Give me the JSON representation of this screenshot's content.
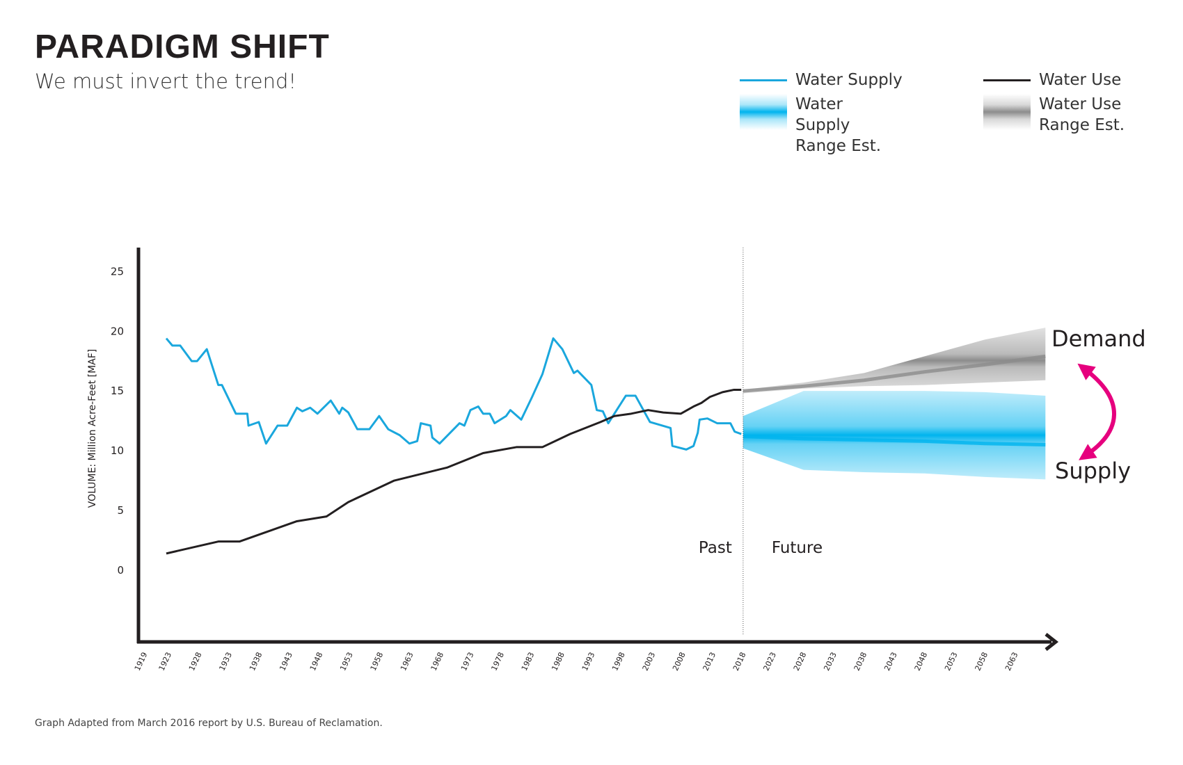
{
  "chart_data": {
    "type": "line",
    "title": "PARADIGM SHIFT",
    "subtitle": "We must invert the trend!",
    "y_label": "VOLUME: Million Acre-Feet [MAF]",
    "source": "Graph Adapted from March 2016 report by U.S. Bureau of Reclamation.",
    "annotations": {
      "demand": "Demand",
      "supply": "Supply",
      "past": "Past",
      "future": "Future"
    },
    "divider_x": 2018,
    "xlim": [
      1918,
      2069
    ],
    "xticks": [
      1919,
      1923,
      1928,
      1933,
      1938,
      1943,
      1948,
      1953,
      1958,
      1963,
      1968,
      1973,
      1978,
      1983,
      1988,
      1993,
      1998,
      2003,
      2008,
      2013,
      2018,
      2023,
      2028,
      2033,
      2038,
      2043,
      2048,
      2053,
      2058,
      2063
    ],
    "ylim": [
      -6,
      27
    ],
    "yticks": [
      0,
      5,
      10,
      15,
      20,
      25
    ],
    "series": [
      {
        "name": "Water Supply",
        "color": "#1aa7dd",
        "x": [
          1922.6,
          1923.6,
          1924.9,
          1926.8,
          1927.7,
          1929.3,
          1931.2,
          1931.8,
          1934.1,
          1936.0,
          1936.2,
          1937.9,
          1939.1,
          1941.0,
          1942.6,
          1944.2,
          1945.1,
          1946.4,
          1947.6,
          1949.8,
          1951.2,
          1951.7,
          1952.7,
          1954.2,
          1956.2,
          1957.8,
          1959.3,
          1961.2,
          1962.8,
          1964.1,
          1964.7,
          1966.3,
          1966.6,
          1967.8,
          1971.1,
          1971.9,
          1972.9,
          1974.2,
          1975.0,
          1976.1,
          1976.9,
          1978.8,
          1979.5,
          1981.3,
          1983.1,
          1984.8,
          1986.6,
          1988.1,
          1990.0,
          1990.6,
          1992.9,
          1993.8,
          1994.8,
          1995.7,
          1998.6,
          2000.2,
          2002.6,
          2006.0,
          2006.3,
          2008.6,
          2009.8,
          2010.5,
          2010.8,
          2012.1,
          2013.7,
          2015.9,
          2016.6,
          2017.7
        ],
        "values": [
          19.4,
          18.8,
          18.8,
          17.5,
          17.5,
          18.5,
          15.5,
          15.5,
          13.1,
          13.1,
          12.1,
          12.4,
          10.6,
          12.1,
          12.1,
          13.6,
          13.3,
          13.6,
          13.1,
          14.2,
          13.1,
          13.6,
          13.2,
          11.8,
          11.8,
          12.9,
          11.8,
          11.3,
          10.6,
          10.8,
          12.3,
          12.1,
          11.1,
          10.6,
          12.3,
          12.1,
          13.4,
          13.7,
          13.1,
          13.1,
          12.3,
          12.9,
          13.4,
          12.6,
          14.5,
          16.4,
          19.4,
          18.5,
          16.5,
          16.7,
          15.5,
          13.4,
          13.3,
          12.3,
          14.6,
          14.6,
          12.4,
          11.9,
          10.4,
          10.1,
          10.4,
          11.5,
          12.6,
          12.7,
          12.3,
          12.3,
          11.6,
          11.4
        ]
      },
      {
        "name": "Water Use",
        "color": "#231f20",
        "x": [
          1922.6,
          1931.2,
          1934.7,
          1944.2,
          1949.1,
          1952.7,
          1960.3,
          1969.1,
          1975.0,
          1980.5,
          1984.8,
          1989.4,
          1994.4,
          1996.7,
          1999.5,
          2002.3,
          2004.8,
          2007.7,
          2009.8,
          2011.1,
          2012.5,
          2014.6,
          2016.5,
          2017.7
        ],
        "values": [
          1.4,
          2.4,
          2.4,
          4.1,
          4.5,
          5.7,
          7.5,
          8.6,
          9.8,
          10.3,
          10.3,
          11.4,
          12.4,
          12.9,
          13.1,
          13.4,
          13.2,
          13.1,
          13.7,
          14.0,
          14.5,
          14.9,
          15.1,
          15.1
        ]
      }
    ],
    "ranges": [
      {
        "name": "Water Supply Range Est.",
        "color": "#00b4ee",
        "x": [
          2018,
          2028,
          2038,
          2048,
          2058,
          2068
        ],
        "values": [
          11.2,
          11.0,
          10.9,
          10.8,
          10.6,
          10.5
        ],
        "low": [
          10.2,
          8.4,
          8.2,
          8.1,
          7.8,
          7.6
        ],
        "high": [
          12.9,
          15.0,
          15.0,
          15.0,
          14.9,
          14.6
        ]
      },
      {
        "name": "Water Use Range Est.",
        "color": "#8c8c8c",
        "x": [
          2018,
          2028,
          2038,
          2048,
          2058,
          2068
        ],
        "values": [
          15.0,
          15.4,
          15.9,
          16.6,
          17.2,
          17.9
        ],
        "low": [
          14.8,
          15.2,
          15.4,
          15.5,
          15.7,
          15.9
        ],
        "high": [
          15.1,
          15.7,
          16.5,
          17.9,
          19.3,
          20.3
        ]
      }
    ]
  }
}
